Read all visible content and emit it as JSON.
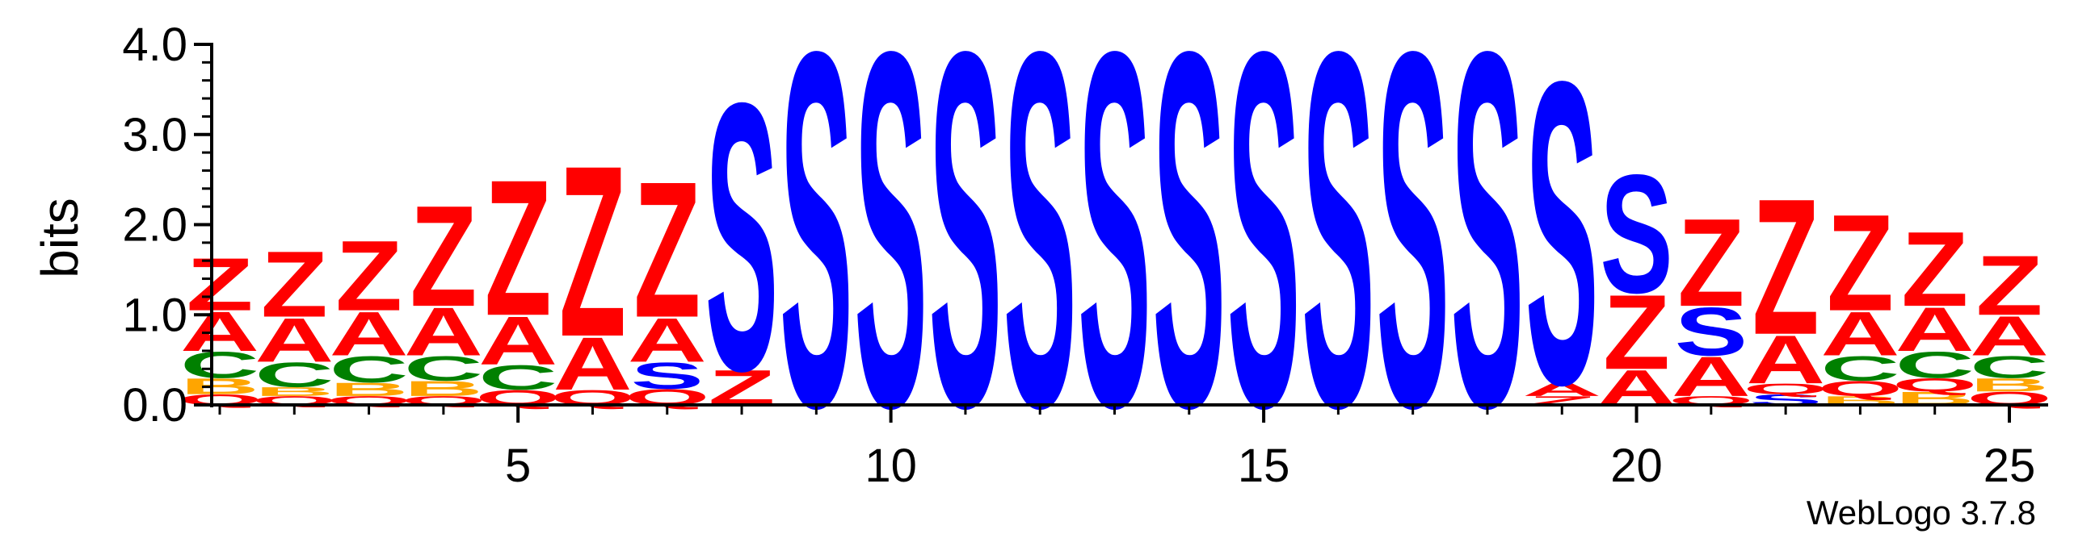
{
  "chart_data": {
    "type": "sequence-logo",
    "ylabel": "bits",
    "ylim": [
      0,
      4.0
    ],
    "y_ticks": [
      {
        "value": 0,
        "label": "0.0"
      },
      {
        "value": 1,
        "label": "1.0"
      },
      {
        "value": 2,
        "label": "2.0"
      },
      {
        "value": 3,
        "label": "3.0"
      },
      {
        "value": 4,
        "label": "4.0"
      }
    ],
    "x_ticks": [
      {
        "value": 5,
        "label": "5"
      },
      {
        "value": 10,
        "label": "10"
      },
      {
        "value": 15,
        "label": "15"
      },
      {
        "value": 20,
        "label": "20"
      },
      {
        "value": 25,
        "label": "25"
      }
    ],
    "letter_colors": {
      "Z": "#ff0000",
      "A": "#ff0000",
      "Q": "#ff0000",
      "S": "#0000ff",
      "C": "#008000",
      "B": "#ffa500"
    },
    "positions": [
      {
        "pos": 1,
        "stack": [
          [
            "Q",
            0.12
          ],
          [
            "B",
            0.18
          ],
          [
            "C",
            0.3
          ],
          [
            "A",
            0.45
          ],
          [
            "Z",
            0.6
          ]
        ]
      },
      {
        "pos": 2,
        "stack": [
          [
            "Q",
            0.1
          ],
          [
            "B",
            0.1
          ],
          [
            "C",
            0.28
          ],
          [
            "A",
            0.5
          ],
          [
            "Z",
            0.75
          ]
        ]
      },
      {
        "pos": 3,
        "stack": [
          [
            "Q",
            0.1
          ],
          [
            "B",
            0.15
          ],
          [
            "C",
            0.3
          ],
          [
            "A",
            0.5
          ],
          [
            "Z",
            0.8
          ]
        ]
      },
      {
        "pos": 4,
        "stack": [
          [
            "Q",
            0.1
          ],
          [
            "B",
            0.17
          ],
          [
            "C",
            0.28
          ],
          [
            "A",
            0.55
          ],
          [
            "Z",
            1.15
          ]
        ]
      },
      {
        "pos": 5,
        "stack": [
          [
            "Q",
            0.17
          ],
          [
            "C",
            0.28
          ],
          [
            "A",
            0.55
          ],
          [
            "Z",
            1.55
          ]
        ]
      },
      {
        "pos": 6,
        "stack": [
          [
            "Q",
            0.17
          ],
          [
            "A",
            0.6
          ],
          [
            "Z",
            1.95
          ]
        ]
      },
      {
        "pos": 7,
        "stack": [
          [
            "Q",
            0.18
          ],
          [
            "S",
            0.3
          ],
          [
            "A",
            0.5
          ],
          [
            "Z",
            1.55
          ]
        ]
      },
      {
        "pos": 8,
        "stack": [
          [
            "Z",
            0.4
          ],
          [
            "S",
            3.05
          ]
        ]
      },
      {
        "pos": 9,
        "stack": [
          [
            "S",
            4.05
          ]
        ]
      },
      {
        "pos": 10,
        "stack": [
          [
            "S",
            4.05
          ]
        ]
      },
      {
        "pos": 11,
        "stack": [
          [
            "S",
            4.05
          ]
        ]
      },
      {
        "pos": 12,
        "stack": [
          [
            "S",
            4.05
          ]
        ]
      },
      {
        "pos": 13,
        "stack": [
          [
            "S",
            4.05
          ]
        ]
      },
      {
        "pos": 14,
        "stack": [
          [
            "S",
            4.05
          ]
        ]
      },
      {
        "pos": 15,
        "stack": [
          [
            "S",
            4.05
          ]
        ]
      },
      {
        "pos": 16,
        "stack": [
          [
            "S",
            4.05
          ]
        ]
      },
      {
        "pos": 17,
        "stack": [
          [
            "S",
            4.05
          ]
        ]
      },
      {
        "pos": 18,
        "stack": [
          [
            "S",
            4.05
          ]
        ]
      },
      {
        "pos": 19,
        "stack": [
          [
            "Z",
            0.1
          ],
          [
            "A",
            0.15
          ],
          [
            "S",
            3.45
          ]
        ]
      },
      {
        "pos": 20,
        "stack": [
          [
            "A",
            0.4
          ],
          [
            "Z",
            0.85
          ],
          [
            "S",
            1.35
          ]
        ]
      },
      {
        "pos": 21,
        "stack": [
          [
            "Q",
            0.1
          ],
          [
            "A",
            0.45
          ],
          [
            "S",
            0.55
          ],
          [
            "Z",
            1.0
          ]
        ]
      },
      {
        "pos": 22,
        "stack": [
          [
            "S",
            0.12
          ],
          [
            "Q",
            0.12
          ],
          [
            "A",
            0.55
          ],
          [
            "Z",
            1.55
          ]
        ]
      },
      {
        "pos": 23,
        "stack": [
          [
            "B",
            0.1
          ],
          [
            "Q",
            0.17
          ],
          [
            "C",
            0.28
          ],
          [
            "A",
            0.5
          ],
          [
            "Z",
            1.1
          ]
        ]
      },
      {
        "pos": 24,
        "stack": [
          [
            "B",
            0.15
          ],
          [
            "Q",
            0.15
          ],
          [
            "C",
            0.3
          ],
          [
            "A",
            0.5
          ],
          [
            "Z",
            0.85
          ]
        ]
      },
      {
        "pos": 25,
        "stack": [
          [
            "Q",
            0.15
          ],
          [
            "B",
            0.15
          ],
          [
            "C",
            0.25
          ],
          [
            "A",
            0.45
          ],
          [
            "Z",
            0.68
          ]
        ]
      }
    ]
  },
  "credit": "WebLogo 3.7.8"
}
